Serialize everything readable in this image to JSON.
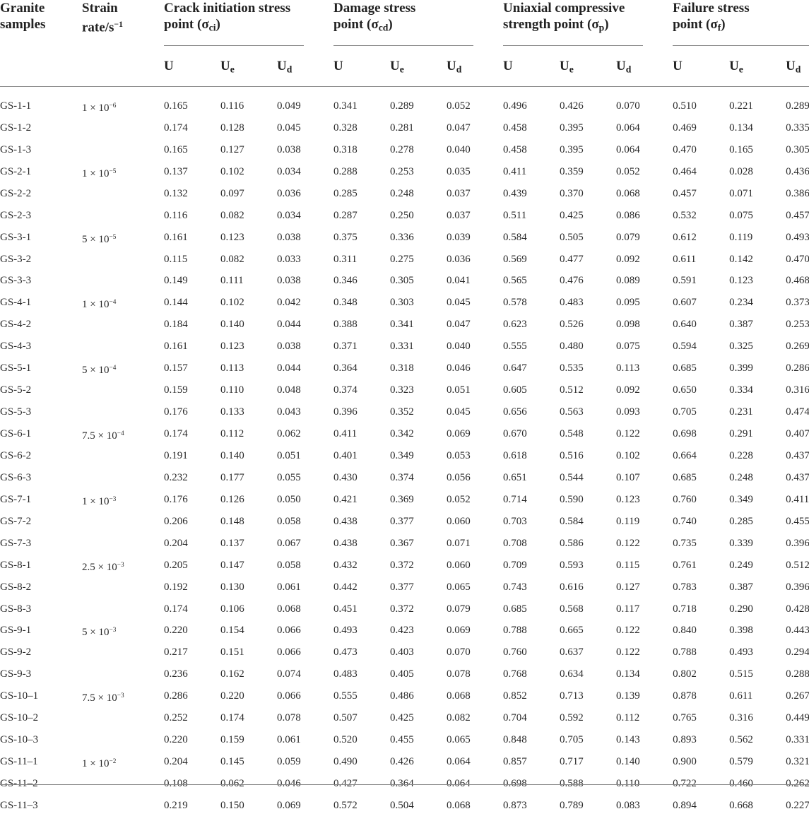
{
  "headers": {
    "samples": [
      "Granite",
      "samples"
    ],
    "strain_rate": [
      "Strain",
      "rate/s",
      "−1"
    ],
    "groups": [
      {
        "line1": "Crack initiation stress",
        "line2": "point (σ",
        "sub": "ci",
        "close": ")"
      },
      {
        "line1": "Damage stress",
        "line2": "point (σ",
        "sub": "cd",
        "close": ")"
      },
      {
        "line1": "Uniaxial compressive",
        "line2": "strength point (σ",
        "sub": "p",
        "close": ")"
      },
      {
        "line1": "Failure stress",
        "line2": "point (σ",
        "sub": "f",
        "close": ")"
      }
    ],
    "energy_labels": [
      {
        "base": "U",
        "sub": ""
      },
      {
        "base": "U",
        "sub": "e"
      },
      {
        "base": "U",
        "sub": "d"
      }
    ]
  },
  "rows": [
    {
      "sample": "GS-1-1",
      "rate_base": "1 × 10",
      "rate_exp": "−6",
      "values": [
        "0.165",
        "0.116",
        "0.049",
        "0.341",
        "0.289",
        "0.052",
        "0.496",
        "0.426",
        "0.070",
        "0.510",
        "0.221",
        "0.289"
      ]
    },
    {
      "sample": "GS-1-2",
      "rate_base": "",
      "rate_exp": "",
      "values": [
        "0.174",
        "0.128",
        "0.045",
        "0.328",
        "0.281",
        "0.047",
        "0.458",
        "0.395",
        "0.064",
        "0.469",
        "0.134",
        "0.335"
      ]
    },
    {
      "sample": "GS-1-3",
      "rate_base": "",
      "rate_exp": "",
      "values": [
        "0.165",
        "0.127",
        "0.038",
        "0.318",
        "0.278",
        "0.040",
        "0.458",
        "0.395",
        "0.064",
        "0.470",
        "0.165",
        "0.305"
      ]
    },
    {
      "sample": "GS-2-1",
      "rate_base": "1 × 10",
      "rate_exp": "−5",
      "values": [
        "0.137",
        "0.102",
        "0.034",
        "0.288",
        "0.253",
        "0.035",
        "0.411",
        "0.359",
        "0.052",
        "0.464",
        "0.028",
        "0.436"
      ]
    },
    {
      "sample": "GS-2-2",
      "rate_base": "",
      "rate_exp": "",
      "values": [
        "0.132",
        "0.097",
        "0.036",
        "0.285",
        "0.248",
        "0.037",
        "0.439",
        "0.370",
        "0.068",
        "0.457",
        "0.071",
        "0.386"
      ]
    },
    {
      "sample": "GS-2-3",
      "rate_base": "",
      "rate_exp": "",
      "values": [
        "0.116",
        "0.082",
        "0.034",
        "0.287",
        "0.250",
        "0.037",
        "0.511",
        "0.425",
        "0.086",
        "0.532",
        "0.075",
        "0.457"
      ]
    },
    {
      "sample": "GS-3-1",
      "rate_base": "5 × 10",
      "rate_exp": "−5",
      "values": [
        "0.161",
        "0.123",
        "0.038",
        "0.375",
        "0.336",
        "0.039",
        "0.584",
        "0.505",
        "0.079",
        "0.612",
        "0.119",
        "0.493"
      ]
    },
    {
      "sample": "GS-3-2",
      "rate_base": "",
      "rate_exp": "",
      "values": [
        "0.115",
        "0.082",
        "0.033",
        "0.311",
        "0.275",
        "0.036",
        "0.569",
        "0.477",
        "0.092",
        "0.611",
        "0.142",
        "0.470"
      ]
    },
    {
      "sample": "GS-3-3",
      "rate_base": "",
      "rate_exp": "",
      "values": [
        "0.149",
        "0.111",
        "0.038",
        "0.346",
        "0.305",
        "0.041",
        "0.565",
        "0.476",
        "0.089",
        "0.591",
        "0.123",
        "0.468"
      ]
    },
    {
      "sample": "GS-4-1",
      "rate_base": "1 × 10",
      "rate_exp": "−4",
      "values": [
        "0.144",
        "0.102",
        "0.042",
        "0.348",
        "0.303",
        "0.045",
        "0.578",
        "0.483",
        "0.095",
        "0.607",
        "0.234",
        "0.373"
      ]
    },
    {
      "sample": "GS-4-2",
      "rate_base": "",
      "rate_exp": "",
      "values": [
        "0.184",
        "0.140",
        "0.044",
        "0.388",
        "0.341",
        "0.047",
        "0.623",
        "0.526",
        "0.098",
        "0.640",
        "0.387",
        "0.253"
      ]
    },
    {
      "sample": "GS-4-3",
      "rate_base": "",
      "rate_exp": "",
      "values": [
        "0.161",
        "0.123",
        "0.038",
        "0.371",
        "0.331",
        "0.040",
        "0.555",
        "0.480",
        "0.075",
        "0.594",
        "0.325",
        "0.269"
      ]
    },
    {
      "sample": "GS-5-1",
      "rate_base": "5 × 10",
      "rate_exp": "−4",
      "values": [
        "0.157",
        "0.113",
        "0.044",
        "0.364",
        "0.318",
        "0.046",
        "0.647",
        "0.535",
        "0.113",
        "0.685",
        "0.399",
        "0.286"
      ]
    },
    {
      "sample": "GS-5-2",
      "rate_base": "",
      "rate_exp": "",
      "values": [
        "0.159",
        "0.110",
        "0.048",
        "0.374",
        "0.323",
        "0.051",
        "0.605",
        "0.512",
        "0.092",
        "0.650",
        "0.334",
        "0.316"
      ]
    },
    {
      "sample": "GS-5-3",
      "rate_base": "",
      "rate_exp": "",
      "values": [
        "0.176",
        "0.133",
        "0.043",
        "0.396",
        "0.352",
        "0.045",
        "0.656",
        "0.563",
        "0.093",
        "0.705",
        "0.231",
        "0.474"
      ]
    },
    {
      "sample": "GS-6-1",
      "rate_base": "7.5 × 10",
      "rate_exp": "−4",
      "values": [
        "0.174",
        "0.112",
        "0.062",
        "0.411",
        "0.342",
        "0.069",
        "0.670",
        "0.548",
        "0.122",
        "0.698",
        "0.291",
        "0.407"
      ]
    },
    {
      "sample": "GS-6-2",
      "rate_base": "",
      "rate_exp": "",
      "values": [
        "0.191",
        "0.140",
        "0.051",
        "0.401",
        "0.349",
        "0.053",
        "0.618",
        "0.516",
        "0.102",
        "0.664",
        "0.228",
        "0.437"
      ]
    },
    {
      "sample": "GS-6-3",
      "rate_base": "",
      "rate_exp": "",
      "values": [
        "0.232",
        "0.177",
        "0.055",
        "0.430",
        "0.374",
        "0.056",
        "0.651",
        "0.544",
        "0.107",
        "0.685",
        "0.248",
        "0.437"
      ]
    },
    {
      "sample": "GS-7-1",
      "rate_base": "1 × 10",
      "rate_exp": "−3",
      "values": [
        "0.176",
        "0.126",
        "0.050",
        "0.421",
        "0.369",
        "0.052",
        "0.714",
        "0.590",
        "0.123",
        "0.760",
        "0.349",
        "0.411"
      ]
    },
    {
      "sample": "GS-7-2",
      "rate_base": "",
      "rate_exp": "",
      "values": [
        "0.206",
        "0.148",
        "0.058",
        "0.438",
        "0.377",
        "0.060",
        "0.703",
        "0.584",
        "0.119",
        "0.740",
        "0.285",
        "0.455"
      ]
    },
    {
      "sample": "GS-7-3",
      "rate_base": "",
      "rate_exp": "",
      "values": [
        "0.204",
        "0.137",
        "0.067",
        "0.438",
        "0.367",
        "0.071",
        "0.708",
        "0.586",
        "0.122",
        "0.735",
        "0.339",
        "0.396"
      ]
    },
    {
      "sample": "GS-8-1",
      "rate_base": "2.5 × 10",
      "rate_exp": "−3",
      "values": [
        "0.205",
        "0.147",
        "0.058",
        "0.432",
        "0.372",
        "0.060",
        "0.709",
        "0.593",
        "0.115",
        "0.761",
        "0.249",
        "0.512"
      ]
    },
    {
      "sample": "GS-8-2",
      "rate_base": "",
      "rate_exp": "",
      "values": [
        "0.192",
        "0.130",
        "0.061",
        "0.442",
        "0.377",
        "0.065",
        "0.743",
        "0.616",
        "0.127",
        "0.783",
        "0.387",
        "0.396"
      ]
    },
    {
      "sample": "GS-8-3",
      "rate_base": "",
      "rate_exp": "",
      "values": [
        "0.174",
        "0.106",
        "0.068",
        "0.451",
        "0.372",
        "0.079",
        "0.685",
        "0.568",
        "0.117",
        "0.718",
        "0.290",
        "0.428"
      ]
    },
    {
      "sample": "GS-9-1",
      "rate_base": "5 × 10",
      "rate_exp": "−3",
      "values": [
        "0.220",
        "0.154",
        "0.066",
        "0.493",
        "0.423",
        "0.069",
        "0.788",
        "0.665",
        "0.122",
        "0.840",
        "0.398",
        "0.443"
      ]
    },
    {
      "sample": "GS-9-2",
      "rate_base": "",
      "rate_exp": "",
      "values": [
        "0.217",
        "0.151",
        "0.066",
        "0.473",
        "0.403",
        "0.070",
        "0.760",
        "0.637",
        "0.122",
        "0.788",
        "0.493",
        "0.294"
      ]
    },
    {
      "sample": "GS-9-3",
      "rate_base": "",
      "rate_exp": "",
      "values": [
        "0.236",
        "0.162",
        "0.074",
        "0.483",
        "0.405",
        "0.078",
        "0.768",
        "0.634",
        "0.134",
        "0.802",
        "0.515",
        "0.288"
      ]
    },
    {
      "sample": "GS-10–1",
      "rate_base": "7.5 × 10",
      "rate_exp": "−3",
      "values": [
        "0.286",
        "0.220",
        "0.066",
        "0.555",
        "0.486",
        "0.068",
        "0.852",
        "0.713",
        "0.139",
        "0.878",
        "0.611",
        "0.267"
      ]
    },
    {
      "sample": "GS-10–2",
      "rate_base": "",
      "rate_exp": "",
      "values": [
        "0.252",
        "0.174",
        "0.078",
        "0.507",
        "0.425",
        "0.082",
        "0.704",
        "0.592",
        "0.112",
        "0.765",
        "0.316",
        "0.449"
      ]
    },
    {
      "sample": "GS-10–3",
      "rate_base": "",
      "rate_exp": "",
      "values": [
        "0.220",
        "0.159",
        "0.061",
        "0.520",
        "0.455",
        "0.065",
        "0.848",
        "0.705",
        "0.143",
        "0.893",
        "0.562",
        "0.331"
      ]
    },
    {
      "sample": "GS-11–1",
      "rate_base": "1 × 10",
      "rate_exp": "−2",
      "values": [
        "0.204",
        "0.145",
        "0.059",
        "0.490",
        "0.426",
        "0.064",
        "0.857",
        "0.717",
        "0.140",
        "0.900",
        "0.579",
        "0.321"
      ]
    },
    {
      "sample": "GS-11–2",
      "rate_base": "",
      "rate_exp": "",
      "values": [
        "0.108",
        "0.062",
        "0.046",
        "0.427",
        "0.364",
        "0.064",
        "0.698",
        "0.588",
        "0.110",
        "0.722",
        "0.460",
        "0.262"
      ]
    },
    {
      "sample": "GS-11–3",
      "rate_base": "",
      "rate_exp": "",
      "values": [
        "0.219",
        "0.150",
        "0.069",
        "0.572",
        "0.504",
        "0.068",
        "0.873",
        "0.789",
        "0.083",
        "0.894",
        "0.668",
        "0.227"
      ]
    }
  ]
}
